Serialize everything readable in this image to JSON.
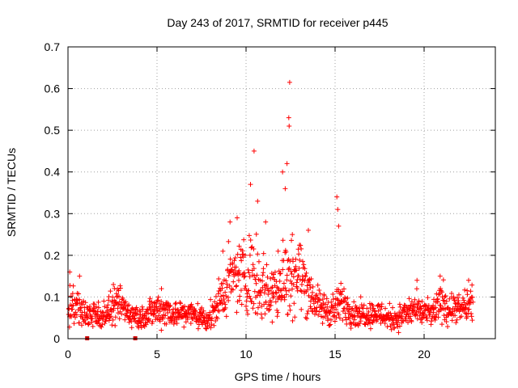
{
  "chart_data": {
    "type": "scatter",
    "title": "Day 243 of 2017, SRMTID for receiver p445",
    "xlabel": "GPS time / hours",
    "ylabel": "SRMTID / TECUs",
    "xlim": [
      0,
      24
    ],
    "ylim": [
      0,
      0.7
    ],
    "xticks": [
      0,
      5,
      10,
      15,
      20
    ],
    "xtick_labels": [
      "0",
      "5",
      "10",
      "15",
      "20"
    ],
    "yticks": [
      0,
      0.1,
      0.2,
      0.3,
      0.4,
      0.5,
      0.6,
      0.7
    ],
    "ytick_labels": [
      "0",
      "0.1",
      "0.2",
      "0.3",
      "0.4",
      "0.5",
      "0.6",
      "0.7"
    ],
    "grid": true,
    "marker": "plus",
    "color": "#ff0000",
    "gap_color": "#cc0000",
    "data_gap_markers_x": [
      1.1,
      3.8
    ],
    "envelope_hours": [
      0,
      0.5,
      1,
      1.5,
      2,
      2.5,
      3,
      3.5,
      4,
      4.5,
      5,
      5.5,
      6,
      6.5,
      7,
      7.5,
      8,
      8.5,
      9,
      9.5,
      10,
      10.5,
      11,
      11.5,
      12,
      12.5,
      13,
      13.5,
      14,
      14.5,
      15,
      15.5,
      16,
      16.5,
      17,
      17.5,
      18,
      18.5,
      19,
      19.5,
      20,
      20.5,
      21,
      21.5,
      22,
      22.5
    ],
    "envelope_median": [
      0.07,
      0.08,
      0.06,
      0.05,
      0.06,
      0.07,
      0.08,
      0.06,
      0.05,
      0.06,
      0.07,
      0.07,
      0.06,
      0.06,
      0.06,
      0.05,
      0.05,
      0.09,
      0.13,
      0.15,
      0.16,
      0.15,
      0.12,
      0.11,
      0.14,
      0.15,
      0.16,
      0.12,
      0.08,
      0.07,
      0.07,
      0.09,
      0.06,
      0.06,
      0.06,
      0.06,
      0.05,
      0.05,
      0.06,
      0.07,
      0.06,
      0.06,
      0.09,
      0.07,
      0.07,
      0.08
    ],
    "envelope_spread": [
      0.04,
      0.05,
      0.03,
      0.03,
      0.03,
      0.04,
      0.04,
      0.03,
      0.03,
      0.03,
      0.04,
      0.04,
      0.03,
      0.03,
      0.03,
      0.03,
      0.03,
      0.05,
      0.07,
      0.08,
      0.09,
      0.1,
      0.08,
      0.07,
      0.09,
      0.1,
      0.08,
      0.07,
      0.04,
      0.04,
      0.04,
      0.05,
      0.03,
      0.03,
      0.03,
      0.03,
      0.03,
      0.03,
      0.03,
      0.04,
      0.03,
      0.03,
      0.05,
      0.04,
      0.03,
      0.04
    ],
    "peaks": [
      {
        "x": 0.1,
        "y": 0.16
      },
      {
        "x": 0.65,
        "y": 0.15
      },
      {
        "x": 2.55,
        "y": 0.13
      },
      {
        "x": 5.25,
        "y": 0.12
      },
      {
        "x": 8.7,
        "y": 0.21
      },
      {
        "x": 9.1,
        "y": 0.28
      },
      {
        "x": 9.5,
        "y": 0.29
      },
      {
        "x": 10.25,
        "y": 0.37
      },
      {
        "x": 10.45,
        "y": 0.45
      },
      {
        "x": 10.65,
        "y": 0.33
      },
      {
        "x": 11.1,
        "y": 0.28
      },
      {
        "x": 11.8,
        "y": 0.21
      },
      {
        "x": 12.05,
        "y": 0.4
      },
      {
        "x": 12.2,
        "y": 0.36
      },
      {
        "x": 12.3,
        "y": 0.42
      },
      {
        "x": 12.4,
        "y": 0.53
      },
      {
        "x": 12.42,
        "y": 0.51
      },
      {
        "x": 12.45,
        "y": 0.615
      },
      {
        "x": 12.6,
        "y": 0.25
      },
      {
        "x": 13.5,
        "y": 0.26
      },
      {
        "x": 15.1,
        "y": 0.34
      },
      {
        "x": 15.15,
        "y": 0.31
      },
      {
        "x": 15.2,
        "y": 0.27
      },
      {
        "x": 19.6,
        "y": 0.14
      },
      {
        "x": 20.9,
        "y": 0.15
      },
      {
        "x": 22.5,
        "y": 0.14
      }
    ]
  }
}
